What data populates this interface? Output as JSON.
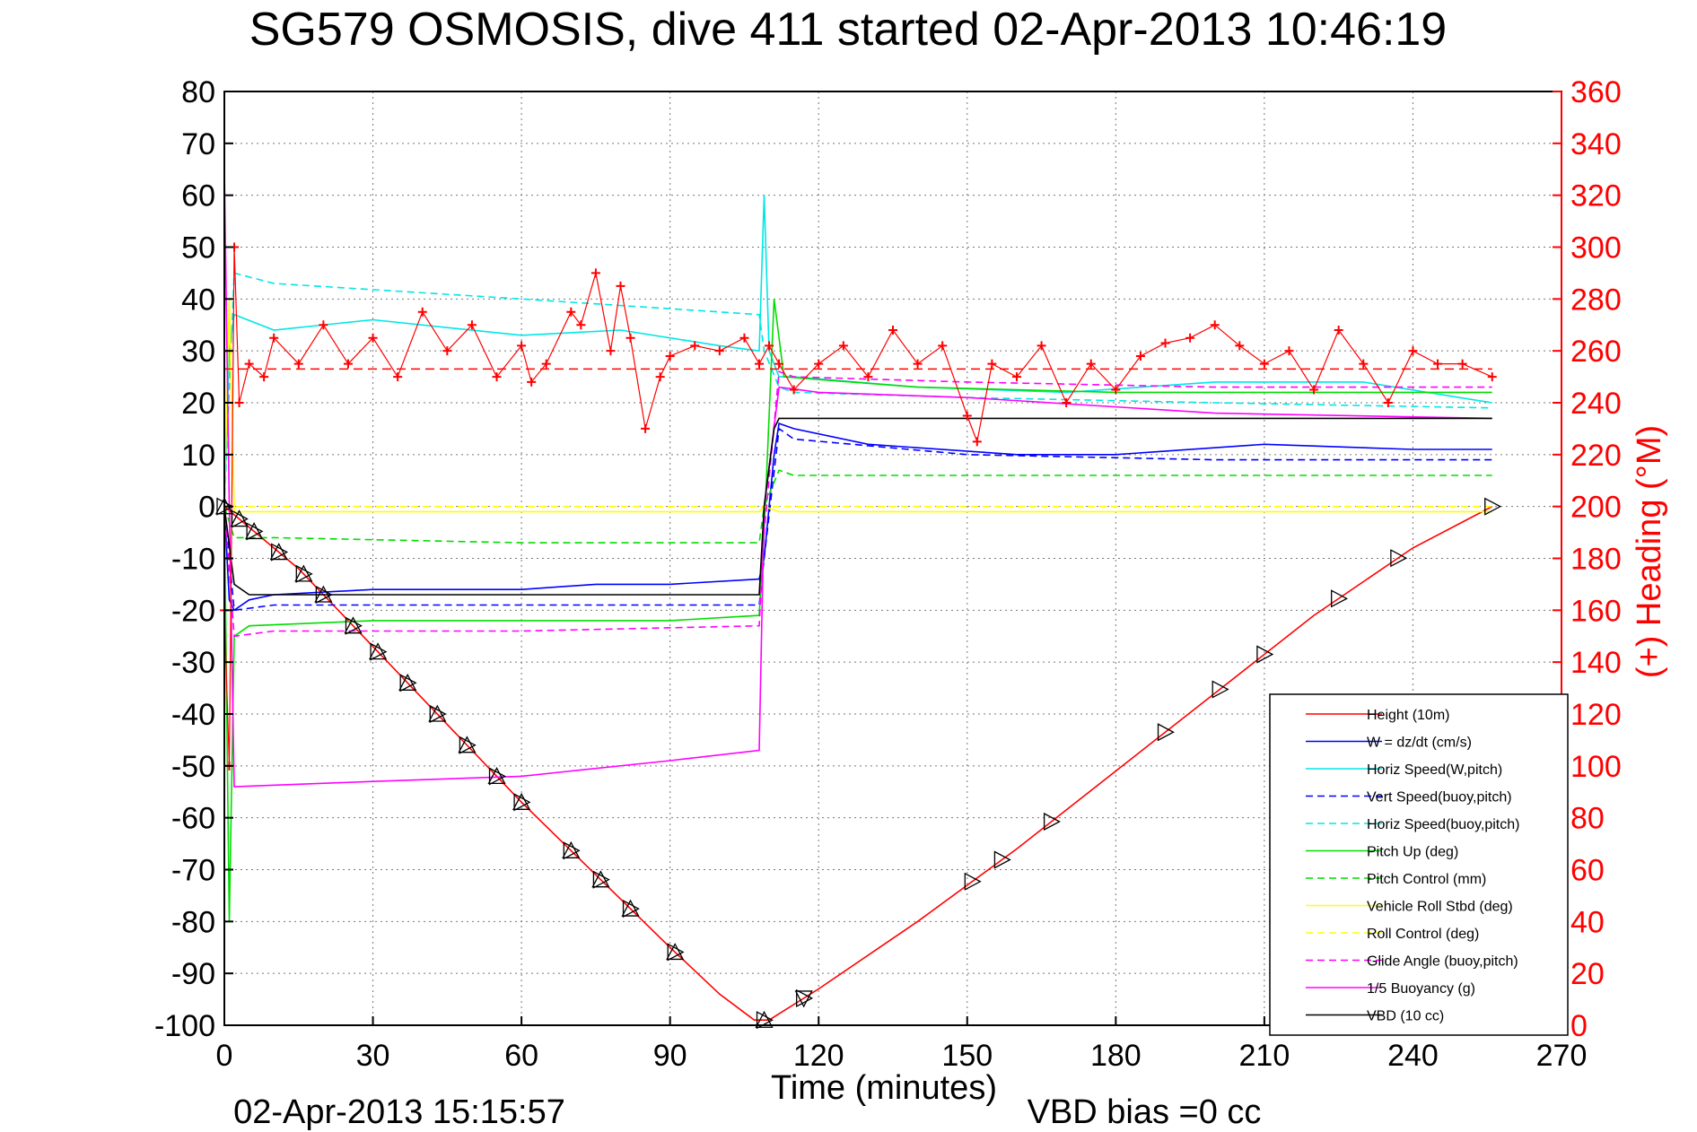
{
  "chart_data": {
    "type": "line",
    "title": "SG579 OSMOSIS, dive 411 started 02-Apr-2013 10:46:19",
    "xlabel": "Time (minutes)",
    "ylabel_right": "(+) Heading (°M)",
    "footer_left": "02-Apr-2013 15:15:57",
    "footer_right": "VBD bias =0 cc",
    "xlim": [
      0,
      270
    ],
    "ylim": [
      -100,
      80
    ],
    "ylim_right": [
      0,
      360
    ],
    "x_ticks": [
      "0",
      "30",
      "60",
      "90",
      "120",
      "150",
      "180",
      "210",
      "240",
      "270"
    ],
    "y_ticks": [
      "-100",
      "-90",
      "-80",
      "-70",
      "-60",
      "-50",
      "-40",
      "-30",
      "-20",
      "-10",
      "0",
      "10",
      "20",
      "30",
      "40",
      "50",
      "60",
      "70",
      "80"
    ],
    "y_ticks_right": [
      "0",
      "20",
      "40",
      "60",
      "80",
      "100",
      "120",
      "140",
      "160",
      "180",
      "200",
      "220",
      "240",
      "260",
      "280",
      "300",
      "320",
      "340",
      "360"
    ],
    "grid": true,
    "legend_position": "bottom-right",
    "series": [
      {
        "name": "Height (10m)",
        "color": "#ff0000",
        "dash": "solid",
        "x": [
          0,
          5,
          15,
          30,
          45,
          60,
          75,
          90,
          100,
          107,
          110,
          120,
          140,
          160,
          180,
          200,
          220,
          240,
          256
        ],
        "y": [
          0,
          -4,
          -12,
          -27,
          -42,
          -57,
          -71,
          -85,
          -94,
          -99,
          -99,
          -93,
          -80,
          -66,
          -51,
          -36,
          -21,
          -8,
          0
        ]
      },
      {
        "name": "W = dz/dt (cm/s)",
        "color": "#0000ff",
        "dash": "solid",
        "x": [
          0,
          1,
          2,
          5,
          10,
          30,
          60,
          75,
          90,
          108,
          109,
          111,
          112,
          115,
          130,
          160,
          180,
          210,
          240,
          256
        ],
        "y": [
          0,
          -18,
          -20,
          -18,
          -17,
          -16,
          -16,
          -15,
          -15,
          -14,
          -10,
          10,
          16,
          15,
          12,
          10,
          10,
          12,
          11,
          11
        ]
      },
      {
        "name": "Horiz Speed(W,pitch)",
        "color": "#00e6e6",
        "dash": "solid",
        "x": [
          0,
          1,
          2,
          10,
          30,
          60,
          80,
          100,
          108,
          109,
          110,
          112,
          115,
          140,
          170,
          200,
          230,
          256
        ],
        "y": [
          0,
          30,
          37,
          34,
          36,
          33,
          34,
          31,
          30,
          60,
          30,
          25,
          25,
          23,
          22,
          24,
          24,
          20
        ]
      },
      {
        "name": "Vert Speed(buoy,pitch)",
        "color": "#0000ff",
        "dash": "dashed",
        "x": [
          0,
          2,
          10,
          60,
          108,
          109,
          112,
          115,
          150,
          200,
          256
        ],
        "y": [
          0,
          -20,
          -19,
          -19,
          -19,
          -10,
          15,
          13,
          10,
          9,
          9
        ]
      },
      {
        "name": "Horiz Speed(buoy,pitch)",
        "color": "#00e6e6",
        "dash": "dashed",
        "x": [
          0,
          2,
          10,
          60,
          108,
          109,
          112,
          115,
          150,
          200,
          256
        ],
        "y": [
          0,
          45,
          43,
          40,
          37,
          30,
          23,
          22,
          21,
          20,
          19
        ]
      },
      {
        "name": "Pitch Up (deg)",
        "color": "#00dd00",
        "dash": "solid",
        "x": [
          0,
          1,
          2,
          5,
          30,
          60,
          90,
          108,
          109,
          111,
          113,
          140,
          180,
          220,
          256
        ],
        "y": [
          0,
          -80,
          -25,
          -23,
          -22,
          -22,
          -22,
          -21,
          -5,
          40,
          25,
          23,
          22,
          22,
          22
        ]
      },
      {
        "name": "Pitch Control (mm)",
        "color": "#00dd00",
        "dash": "dashed",
        "x": [
          0,
          2,
          10,
          60,
          108,
          109,
          112,
          115,
          150,
          200,
          256
        ],
        "y": [
          0,
          -6,
          -6,
          -7,
          -7,
          0,
          7,
          6,
          6,
          6,
          6
        ]
      },
      {
        "name": "Vehicle Roll Stbd (deg)",
        "color": "#ffff00",
        "dash": "solid",
        "x": [
          0,
          1,
          2,
          10,
          60,
          108,
          109,
          112,
          150,
          200,
          256
        ],
        "y": [
          0,
          40,
          -1,
          -1,
          -1,
          -1,
          0,
          -1,
          -1,
          -1,
          -1
        ]
      },
      {
        "name": "Roll Control (deg)",
        "color": "#ffff00",
        "dash": "dashed",
        "x": [
          0,
          2,
          60,
          108,
          112,
          150,
          200,
          256
        ],
        "y": [
          0,
          0,
          0,
          0,
          0,
          0,
          0,
          0
        ]
      },
      {
        "name": "Glide Angle (buoy,pitch)",
        "color": "#ff00ff",
        "dash": "dashed",
        "x": [
          0,
          2,
          10,
          60,
          108,
          109,
          112,
          115,
          150,
          200,
          256
        ],
        "y": [
          0,
          -25,
          -24,
          -24,
          -23,
          -5,
          26,
          25,
          24,
          23,
          23
        ]
      },
      {
        "name": "1/5 Buoyancy (g)",
        "color": "#ff00ff",
        "dash": "solid",
        "x": [
          0,
          1,
          2,
          30,
          60,
          90,
          108,
          109,
          112,
          120,
          150,
          200,
          256
        ],
        "y": [
          65,
          0,
          -54,
          -53,
          -52,
          -49,
          -47,
          0,
          23,
          22,
          21,
          18,
          17
        ]
      },
      {
        "name": "VBD (10 cc)",
        "color": "#000000",
        "dash": "solid",
        "x": [
          0,
          2,
          5,
          108,
          109,
          111,
          112,
          256
        ],
        "y": [
          0,
          -15,
          -17,
          -17,
          0,
          15,
          17,
          17
        ]
      }
    ],
    "heading_series": {
      "name": "(+) Heading",
      "color": "#ff0000",
      "marker": "+",
      "axis": "right",
      "reference_line": 253,
      "x": [
        0,
        1,
        2,
        3,
        5,
        8,
        10,
        15,
        20,
        25,
        30,
        35,
        40,
        45,
        50,
        55,
        60,
        62,
        65,
        70,
        72,
        75,
        78,
        80,
        82,
        85,
        88,
        90,
        95,
        100,
        105,
        108,
        110,
        112,
        115,
        120,
        125,
        130,
        135,
        140,
        145,
        150,
        152,
        155,
        160,
        165,
        170,
        175,
        180,
        185,
        190,
        195,
        200,
        205,
        210,
        215,
        220,
        225,
        230,
        235,
        240,
        245,
        250,
        256
      ],
      "y": [
        160,
        100,
        300,
        240,
        255,
        250,
        265,
        255,
        270,
        255,
        265,
        250,
        275,
        260,
        270,
        250,
        262,
        248,
        255,
        275,
        270,
        290,
        260,
        285,
        265,
        230,
        250,
        258,
        262,
        260,
        265,
        255,
        262,
        255,
        245,
        255,
        262,
        250,
        268,
        255,
        262,
        235,
        225,
        255,
        250,
        262,
        240,
        255,
        245,
        258,
        263,
        265,
        270,
        262,
        255,
        260,
        245,
        268,
        255,
        240,
        260,
        255,
        255,
        250
      ]
    },
    "profile_markers": {
      "descent_x": [
        0,
        3,
        6,
        11,
        16,
        20,
        26,
        31,
        37,
        43,
        49,
        55,
        60,
        70,
        76,
        82,
        91,
        109
      ],
      "ascent_x": [
        117,
        151,
        157,
        167,
        190,
        201,
        210,
        225,
        237,
        256
      ]
    }
  }
}
